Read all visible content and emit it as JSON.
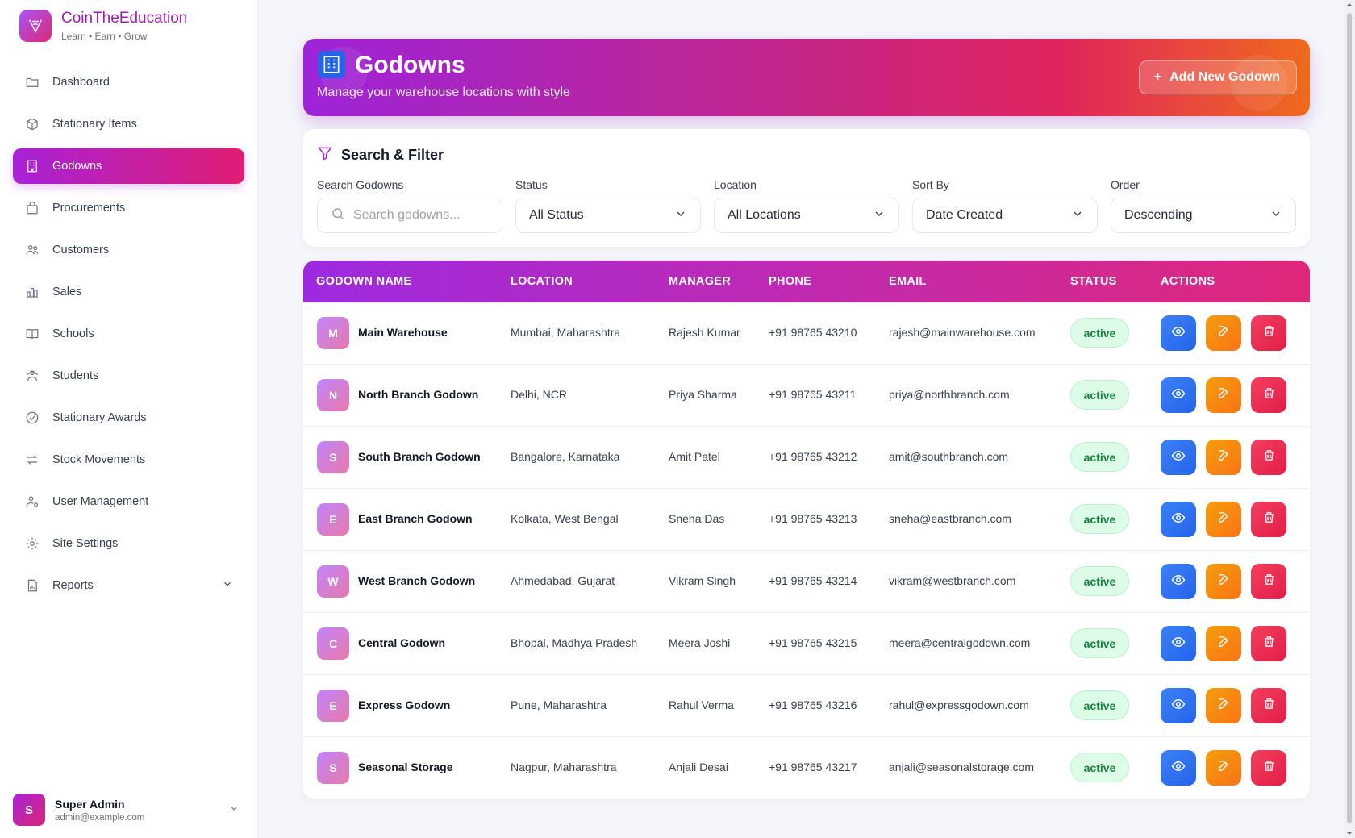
{
  "brand": {
    "name": "CoinTheEducation",
    "tagline": "Learn • Earn • Grow"
  },
  "sidebar": {
    "items": [
      {
        "label": "Dashboard",
        "icon": "folder-icon"
      },
      {
        "label": "Stationary Items",
        "icon": "box-icon"
      },
      {
        "label": "Godowns",
        "icon": "building-icon",
        "active": true
      },
      {
        "label": "Procurements",
        "icon": "bag-icon"
      },
      {
        "label": "Customers",
        "icon": "users-icon"
      },
      {
        "label": "Sales",
        "icon": "bar-chart-icon"
      },
      {
        "label": "Schools",
        "icon": "book-icon"
      },
      {
        "label": "Students",
        "icon": "students-icon"
      },
      {
        "label": "Stationary Awards",
        "icon": "check-circle-icon"
      },
      {
        "label": "Stock Movements",
        "icon": "arrows-icon"
      },
      {
        "label": "User Management",
        "icon": "user-gear-icon"
      },
      {
        "label": "Site Settings",
        "icon": "gear-icon"
      },
      {
        "label": "Reports",
        "icon": "report-icon",
        "expandable": true
      }
    ]
  },
  "user": {
    "initial": "S",
    "name": "Super Admin",
    "email": "admin@example.com"
  },
  "header": {
    "title": "Godowns",
    "subtitle": "Manage your warehouse locations with style",
    "add_button": "Add New Godown"
  },
  "filters": {
    "title": "Search & Filter",
    "search": {
      "label": "Search Godowns",
      "placeholder": "Search godowns..."
    },
    "status": {
      "label": "Status",
      "value": "All Status"
    },
    "location": {
      "label": "Location",
      "value": "All Locations"
    },
    "sort_by": {
      "label": "Sort By",
      "value": "Date Created"
    },
    "order": {
      "label": "Order",
      "value": "Descending"
    }
  },
  "table": {
    "columns": [
      "GODOWN NAME",
      "LOCATION",
      "MANAGER",
      "PHONE",
      "EMAIL",
      "STATUS",
      "ACTIONS"
    ],
    "rows": [
      {
        "initial": "M",
        "name": "Main Warehouse",
        "location": "Mumbai, Maharashtra",
        "manager": "Rajesh Kumar",
        "phone": "+91 98765 43210",
        "email": "rajesh@mainwarehouse.com",
        "status": "active"
      },
      {
        "initial": "N",
        "name": "North Branch Godown",
        "location": "Delhi, NCR",
        "manager": "Priya Sharma",
        "phone": "+91 98765 43211",
        "email": "priya@northbranch.com",
        "status": "active"
      },
      {
        "initial": "S",
        "name": "South Branch Godown",
        "location": "Bangalore, Karnataka",
        "manager": "Amit Patel",
        "phone": "+91 98765 43212",
        "email": "amit@southbranch.com",
        "status": "active"
      },
      {
        "initial": "E",
        "name": "East Branch Godown",
        "location": "Kolkata, West Bengal",
        "manager": "Sneha Das",
        "phone": "+91 98765 43213",
        "email": "sneha@eastbranch.com",
        "status": "active"
      },
      {
        "initial": "W",
        "name": "West Branch Godown",
        "location": "Ahmedabad, Gujarat",
        "manager": "Vikram Singh",
        "phone": "+91 98765 43214",
        "email": "vikram@westbranch.com",
        "status": "active"
      },
      {
        "initial": "C",
        "name": "Central Godown",
        "location": "Bhopal, Madhya Pradesh",
        "manager": "Meera Joshi",
        "phone": "+91 98765 43215",
        "email": "meera@centralgodown.com",
        "status": "active"
      },
      {
        "initial": "E",
        "name": "Express Godown",
        "location": "Pune, Maharashtra",
        "manager": "Rahul Verma",
        "phone": "+91 98765 43216",
        "email": "rahul@expressgodown.com",
        "status": "active"
      },
      {
        "initial": "S",
        "name": "Seasonal Storage",
        "location": "Nagpur, Maharashtra",
        "manager": "Anjali Desai",
        "phone": "+91 98765 43217",
        "email": "anjali@seasonalstorage.com",
        "status": "active"
      }
    ]
  },
  "colors": {
    "accent_purple": "#a822d8",
    "accent_pink": "#e11d74",
    "view_button": "#2563eb",
    "edit_button": "#f59e0b",
    "delete_button": "#e11d48",
    "status_active_bg": "#dcfce7",
    "status_active_text": "#15803d"
  }
}
